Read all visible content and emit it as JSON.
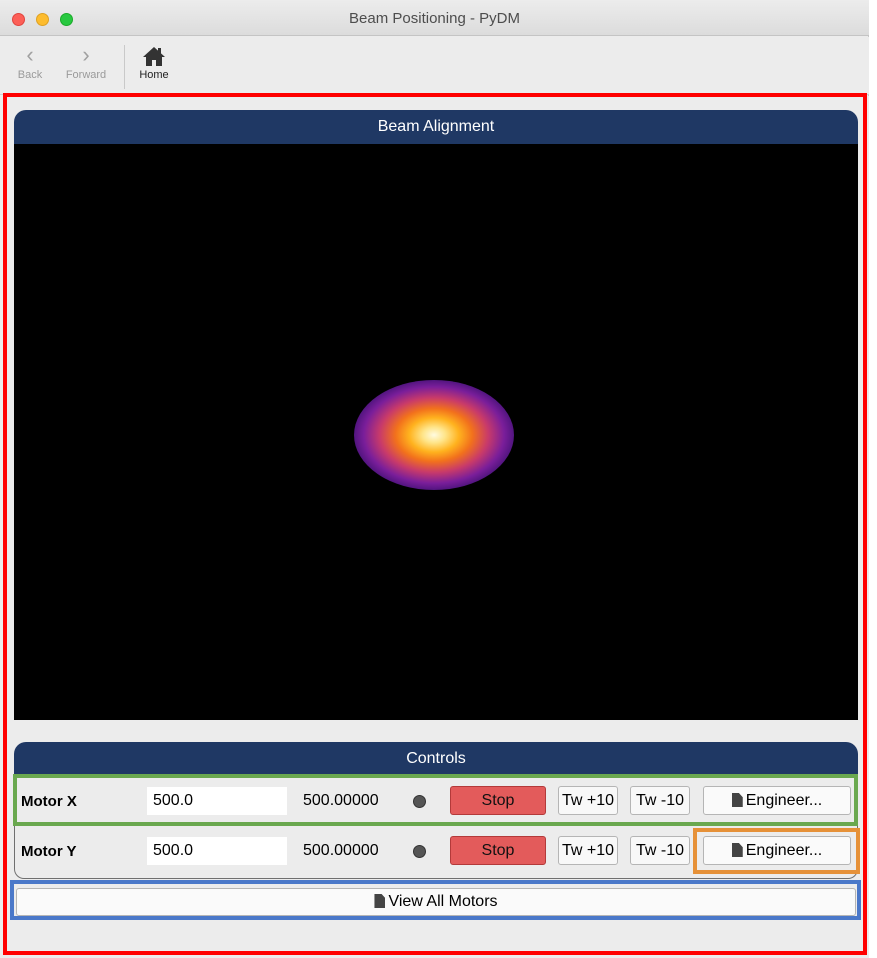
{
  "window": {
    "title": "Beam Positioning - PyDM"
  },
  "toolbar": {
    "back_label": "Back",
    "forward_label": "Forward",
    "home_label": "Home",
    "back_icon": "chevron-left-icon",
    "forward_icon": "chevron-right-icon",
    "home_icon": "home-icon"
  },
  "beam_panel": {
    "title": "Beam Alignment"
  },
  "controls_panel": {
    "title": "Controls",
    "motors": [
      {
        "label": "Motor X",
        "setpoint": "500.0",
        "readback": "500.00000",
        "stop_label": "Stop",
        "tweak_plus_label": "Tw +10",
        "tweak_minus_label": "Tw -10",
        "engineer_label": "Engineer..."
      },
      {
        "label": "Motor Y",
        "setpoint": "500.0",
        "readback": "500.00000",
        "stop_label": "Stop",
        "tweak_plus_label": "Tw +10",
        "tweak_minus_label": "Tw -10",
        "engineer_label": "Engineer..."
      }
    ],
    "view_all_label": "View All Motors"
  },
  "colors": {
    "header_bg": "#1f3864",
    "stop_button": "#e35b5b",
    "highlight_main": "#ff0000",
    "highlight_row": "#6aa84f",
    "highlight_engineer": "#e69138",
    "highlight_view_all": "#4a78c9"
  }
}
